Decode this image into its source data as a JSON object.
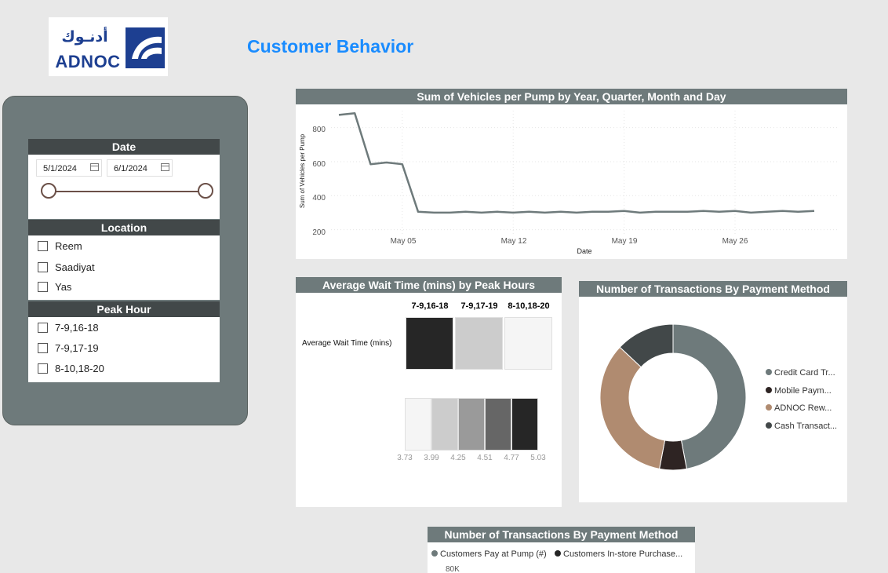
{
  "header": {
    "logo_arabic": "أدنـوك",
    "logo_english": "ADNOC",
    "title": "Customer Behavior"
  },
  "filters": {
    "date": {
      "label": "Date",
      "start": "5/1/2024",
      "end": "6/1/2024",
      "icon": "calendar-icon"
    },
    "location": {
      "label": "Location",
      "options": [
        "Reem",
        "Saadiyat",
        "Yas"
      ]
    },
    "peak_hour": {
      "label": "Peak Hour",
      "options": [
        "7-9,16-18",
        "7-9,17-19",
        "8-10,18-20"
      ]
    }
  },
  "line_chart": {
    "title": "Sum of Vehicles per Pump by Year, Quarter, Month and Day",
    "xlabel": "Date",
    "ylabel": "Sum of Vehicles per Pump",
    "yticks": [
      "800",
      "600",
      "400",
      "200"
    ],
    "xticks": [
      "May 05",
      "May 12",
      "May 19",
      "May 26"
    ]
  },
  "matrix": {
    "title": "Average Wait Time (mins) by Peak Hours",
    "row_label": "Average Wait Time (mins)",
    "columns": [
      "7-9,16-18",
      "7-9,17-19",
      "8-10,18-20"
    ],
    "cell_colors": [
      "#262626",
      "#cccccc",
      "#f5f5f5"
    ],
    "scale_labels": [
      "3.73",
      "3.99",
      "4.25",
      "4.51",
      "4.77",
      "5.03"
    ],
    "scale_colors": [
      "#f5f5f5",
      "#cccccc",
      "#9a9a9a",
      "#666666",
      "#262626"
    ]
  },
  "donut": {
    "title": "Number of Transactions By Payment Method",
    "legend": [
      "Credit Card Tr...",
      "Mobile Paym...",
      "ADNOC Rew...",
      "Cash Transact..."
    ],
    "colors": [
      "#6e7a7b",
      "#2e2423",
      "#b08b70",
      "#424849"
    ]
  },
  "bottom_chart": {
    "title": "Number of Transactions By Payment Method",
    "legend": [
      "Customers Pay at Pump (#)",
      "Customers In-store Purchase..."
    ],
    "colors": [
      "#6e7a7b",
      "#262626"
    ],
    "ytick": "80K"
  },
  "chart_data": [
    {
      "type": "line",
      "title": "Sum of Vehicles per Pump by Year, Quarter, Month and Day",
      "xlabel": "Date",
      "ylabel": "Sum of Vehicles per Pump",
      "x": [
        "2024-05-01",
        "2024-05-02",
        "2024-05-03",
        "2024-05-04",
        "2024-05-05",
        "2024-05-06",
        "2024-05-07",
        "2024-05-08",
        "2024-05-09",
        "2024-05-10",
        "2024-05-11",
        "2024-05-12",
        "2024-05-13",
        "2024-05-14",
        "2024-05-15",
        "2024-05-16",
        "2024-05-17",
        "2024-05-18",
        "2024-05-19",
        "2024-05-20",
        "2024-05-21",
        "2024-05-22",
        "2024-05-23",
        "2024-05-24",
        "2024-05-25",
        "2024-05-26",
        "2024-05-27",
        "2024-05-28",
        "2024-05-29",
        "2024-05-30",
        "2024-05-31"
      ],
      "values": [
        875,
        885,
        585,
        595,
        585,
        305,
        300,
        300,
        305,
        300,
        305,
        300,
        305,
        300,
        305,
        300,
        305,
        305,
        310,
        300,
        305,
        305,
        305,
        310,
        305,
        310,
        300,
        305,
        310,
        305,
        310
      ],
      "ylim": [
        175,
        900
      ],
      "grid": true
    },
    {
      "type": "pie",
      "title": "Number of Transactions By Payment Method",
      "categories": [
        "Credit Card Tr...",
        "Mobile Paym...",
        "ADNOC Rew...",
        "Cash Transact..."
      ],
      "values": [
        47,
        6,
        34,
        13
      ],
      "legend": "right"
    }
  ]
}
